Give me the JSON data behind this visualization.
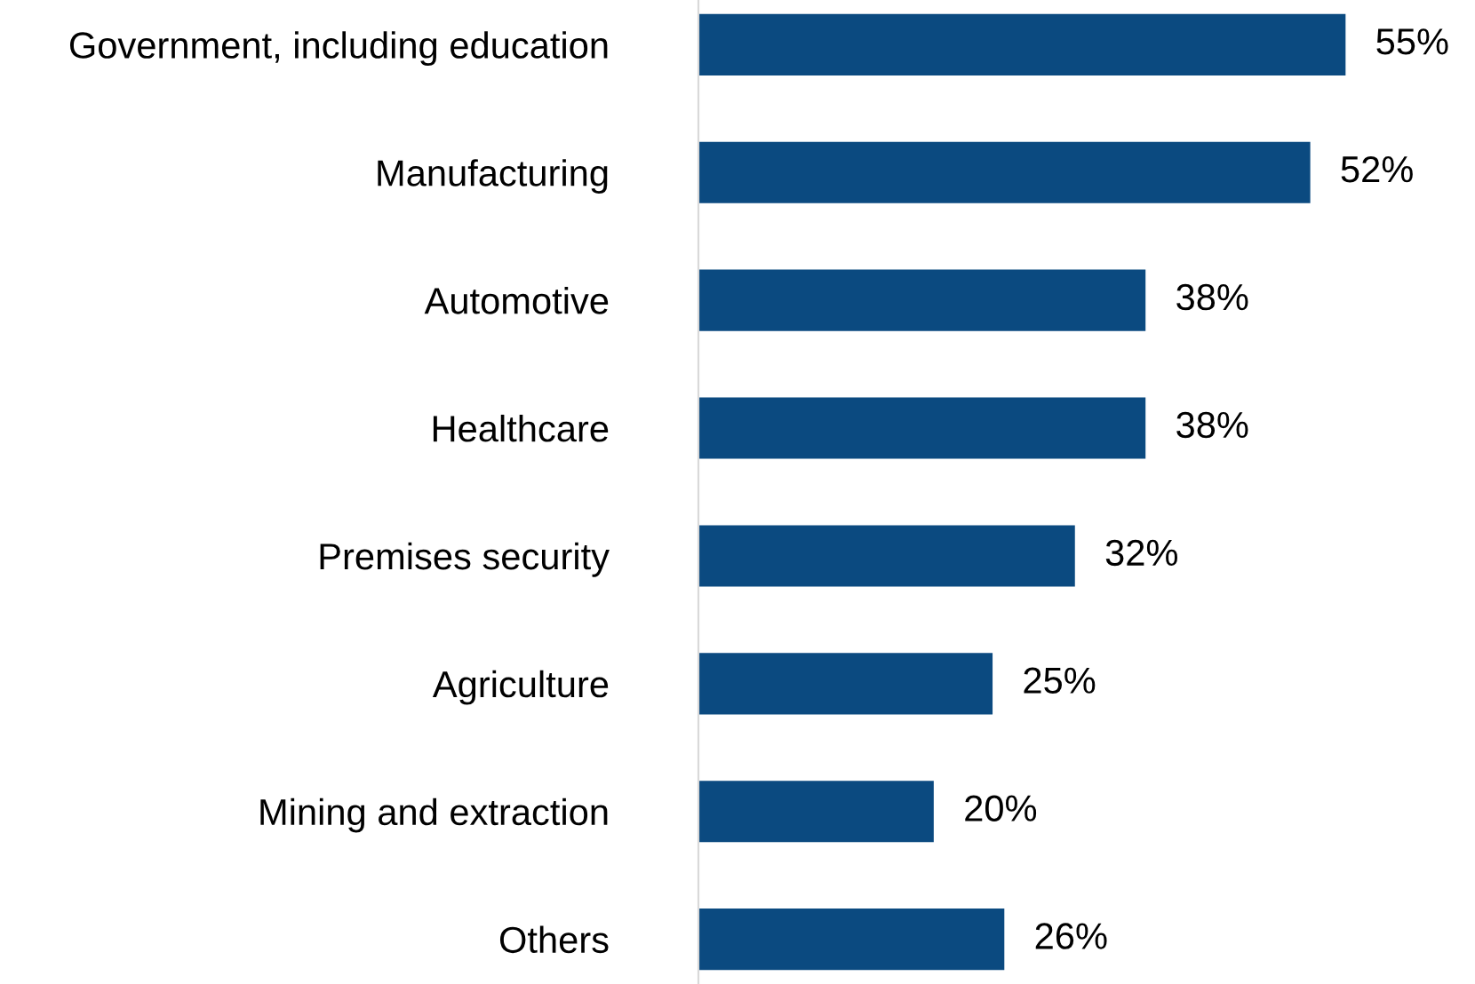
{
  "chart_data": {
    "type": "bar",
    "orientation": "horizontal",
    "categories": [
      "Government, including education",
      "Manufacturing",
      "Automotive",
      "Healthcare",
      "Premises security",
      "Agriculture",
      "Mining and extraction",
      "Others"
    ],
    "values": [
      55,
      52,
      38,
      38,
      32,
      25,
      20,
      26
    ],
    "value_labels": [
      "55%",
      "52%",
      "38%",
      "38%",
      "32%",
      "25%",
      "20%",
      "26%"
    ],
    "color": "#0b4a80",
    "grid": false,
    "legend": false,
    "tick_labels": "y"
  }
}
